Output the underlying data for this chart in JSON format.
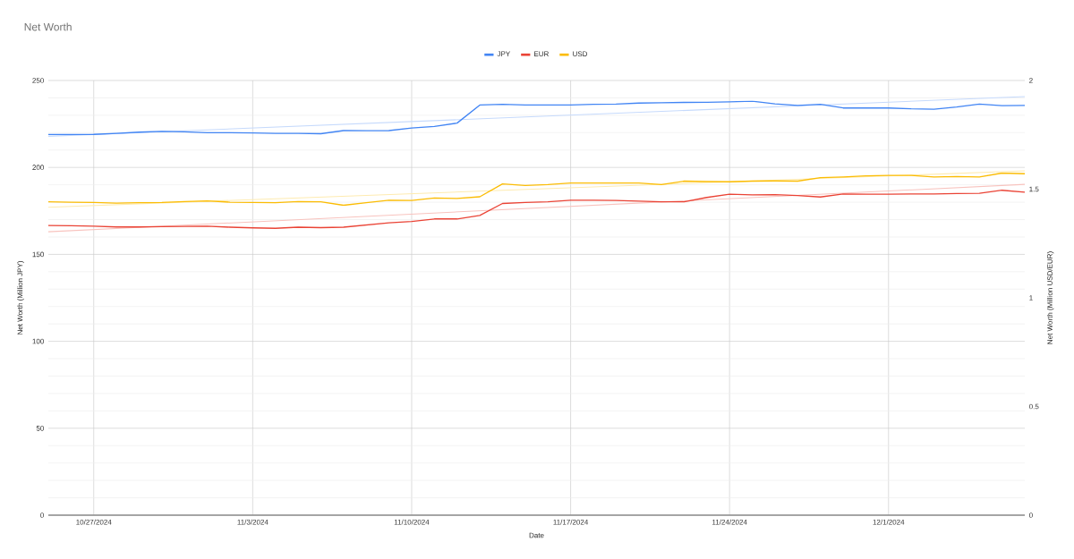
{
  "chart_data": {
    "type": "line",
    "title": "Net Worth",
    "xlabel": "Date",
    "ylabel": "Net Worth (Million JPY)",
    "y2label": "Net Worth (Million USD/EUR)",
    "x": [
      "2024-10-25",
      "2024-10-26",
      "2024-10-27",
      "2024-10-28",
      "2024-10-29",
      "2024-10-30",
      "2024-10-31",
      "2024-11-01",
      "2024-11-02",
      "2024-11-03",
      "2024-11-04",
      "2024-11-05",
      "2024-11-06",
      "2024-11-07",
      "2024-11-08",
      "2024-11-09",
      "2024-11-10",
      "2024-11-11",
      "2024-11-12",
      "2024-11-13",
      "2024-11-14",
      "2024-11-15",
      "2024-11-16",
      "2024-11-17",
      "2024-11-18",
      "2024-11-19",
      "2024-11-20",
      "2024-11-21",
      "2024-11-22",
      "2024-11-23",
      "2024-11-24",
      "2024-11-25",
      "2024-11-26",
      "2024-11-27",
      "2024-11-28",
      "2024-11-29",
      "2024-11-30",
      "2024-12-01",
      "2024-12-02",
      "2024-12-03",
      "2024-12-04",
      "2024-12-05",
      "2024-12-06",
      "2024-12-07"
    ],
    "series": [
      {
        "name": "JPY",
        "color": "#4285f4",
        "values": [
          218.9,
          218.9,
          219.0,
          219.6,
          220.3,
          220.7,
          220.5,
          220.0,
          220.0,
          219.8,
          219.6,
          219.6,
          219.4,
          221.2,
          221.1,
          221.2,
          222.7,
          223.6,
          225.5,
          235.9,
          236.3,
          235.9,
          235.9,
          235.9,
          236.3,
          236.4,
          237.0,
          237.2,
          237.4,
          237.5,
          237.7,
          238.1,
          236.6,
          235.7,
          236.3,
          234.2,
          234.2,
          234.2,
          233.7,
          233.5,
          234.8,
          236.4,
          235.5,
          235.7
        ]
      },
      {
        "name": "EUR",
        "color": "#ea4335",
        "axis": "y2",
        "values": [
          1.333,
          1.332,
          1.33,
          1.326,
          1.326,
          1.328,
          1.329,
          1.33,
          1.325,
          1.322,
          1.32,
          1.325,
          1.323,
          1.325,
          1.335,
          1.345,
          1.351,
          1.363,
          1.363,
          1.379,
          1.434,
          1.439,
          1.442,
          1.449,
          1.449,
          1.448,
          1.445,
          1.442,
          1.442,
          1.462,
          1.477,
          1.474,
          1.475,
          1.471,
          1.464,
          1.478,
          1.477,
          1.477,
          1.478,
          1.478,
          1.48,
          1.481,
          1.495,
          1.486
        ]
      },
      {
        "name": "USD",
        "color": "#fbbc04",
        "axis": "y2",
        "values": [
          1.442,
          1.44,
          1.439,
          1.436,
          1.438,
          1.439,
          1.443,
          1.446,
          1.44,
          1.439,
          1.438,
          1.443,
          1.442,
          1.426,
          1.438,
          1.449,
          1.448,
          1.459,
          1.457,
          1.465,
          1.524,
          1.517,
          1.521,
          1.528,
          1.528,
          1.528,
          1.528,
          1.521,
          1.537,
          1.535,
          1.534,
          1.537,
          1.538,
          1.537,
          1.553,
          1.556,
          1.561,
          1.563,
          1.563,
          1.556,
          1.558,
          1.556,
          1.574,
          1.571
        ]
      },
      {
        "type": "line",
        "color": "#c6dafc",
        "x": [
          "2024-10-25",
          "2024-12-07"
        ],
        "values": [
          217.9,
          240.7
        ]
      },
      {
        "type": "line",
        "color": "#f8c3be",
        "axis": "y2",
        "x": [
          "2024-10-25",
          "2024-12-07"
        ],
        "values": [
          1.304,
          1.522
        ]
      },
      {
        "type": "line",
        "color": "#feebb0",
        "axis": "y2",
        "x": [
          "2024-10-25",
          "2024-12-07"
        ],
        "values": [
          1.417,
          1.584
        ]
      }
    ],
    "xlim": [
      "2024-10-25",
      "2024-12-07"
    ],
    "xticks": [
      {
        "value": "2024-10-27",
        "label": "10/27/2024"
      },
      {
        "value": "2024-11-03",
        "label": "11/3/2024"
      },
      {
        "value": "2024-11-10",
        "label": "11/10/2024"
      },
      {
        "value": "2024-11-17",
        "label": "11/17/2024"
      },
      {
        "value": "2024-11-24",
        "label": "11/24/2024"
      },
      {
        "value": "2024-12-01",
        "label": "12/1/2024"
      }
    ],
    "ylim": [
      0,
      250
    ],
    "yticks": [
      0,
      50,
      100,
      150,
      200,
      250
    ],
    "y2lim": [
      0,
      2
    ],
    "y2ticks": [
      0,
      0.5,
      1,
      1.5,
      2
    ],
    "grid": true,
    "legend": "top",
    "marker": "none"
  }
}
